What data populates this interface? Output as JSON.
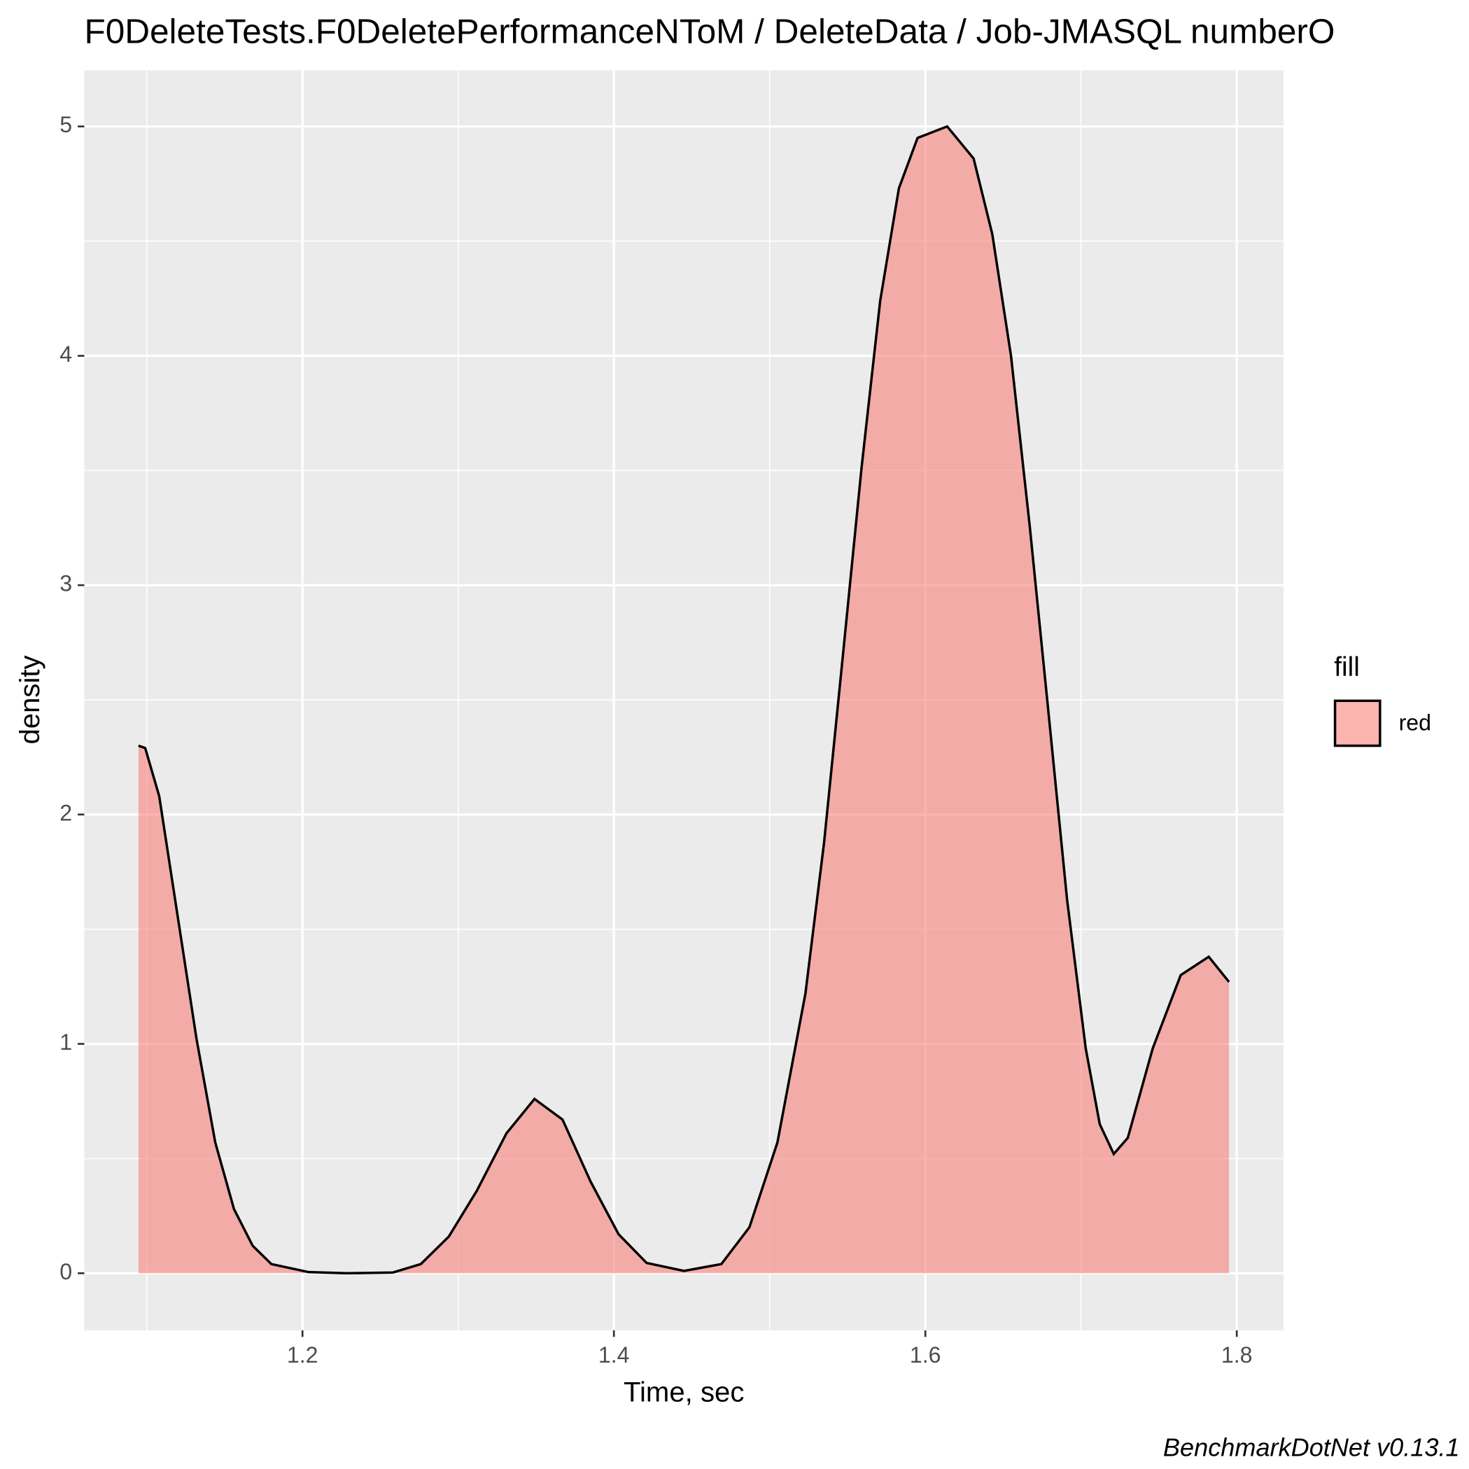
{
  "chart_data": {
    "type": "density",
    "title": "F0DeleteTests.F0DeletePerformanceNToM / DeleteData / Job-JMASQL numberO",
    "x_label": "Time, sec",
    "y_label": "density",
    "caption": "BenchmarkDotNet v0.13.1",
    "legend_title": "fill",
    "legend_position": "right",
    "x": [
      1.0947,
      1.099,
      1.108,
      1.12,
      1.132,
      1.144,
      1.156,
      1.168,
      1.18,
      1.204,
      1.228,
      1.258,
      1.276,
      1.294,
      1.312,
      1.331,
      1.349,
      1.367,
      1.385,
      1.403,
      1.421,
      1.445,
      1.469,
      1.487,
      1.505,
      1.523,
      1.535,
      1.547,
      1.559,
      1.571,
      1.583,
      1.595,
      1.614,
      1.631,
      1.643,
      1.655,
      1.667,
      1.679,
      1.691,
      1.703,
      1.712,
      1.721,
      1.73,
      1.746,
      1.764,
      1.782,
      1.795
    ],
    "series": [
      {
        "name": "red",
        "color": "#F8766D",
        "values": [
          2.3,
          2.29,
          2.08,
          1.55,
          1.02,
          0.57,
          0.28,
          0.12,
          0.04,
          0.005,
          0,
          0.003,
          0.04,
          0.16,
          0.36,
          0.61,
          0.76,
          0.67,
          0.4,
          0.17,
          0.045,
          0.01,
          0.04,
          0.2,
          0.57,
          1.22,
          1.88,
          2.69,
          3.51,
          4.24,
          4.73,
          4.95,
          5.0,
          4.86,
          4.53,
          4.0,
          3.26,
          2.45,
          1.63,
          0.98,
          0.65,
          0.52,
          0.59,
          0.98,
          1.3,
          1.38,
          1.27
        ]
      }
    ],
    "xlim": [
      1.0599,
      1.83
    ],
    "ylim": [
      -0.249,
      5.245
    ],
    "xticks": [
      1.2,
      1.4,
      1.6,
      1.8
    ],
    "yticks": [
      0,
      1,
      2,
      3,
      4,
      5
    ],
    "grid": true
  }
}
